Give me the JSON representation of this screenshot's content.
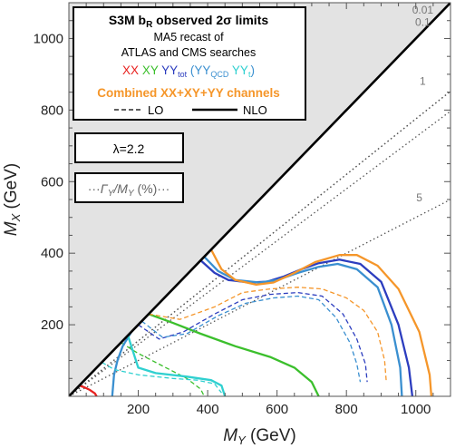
{
  "chart_data": {
    "type": "line",
    "title": "S3M b_R observed 2σ limits",
    "xlabel": "M_Y (GeV)",
    "ylabel": "M_X (GeV)",
    "xlim": [
      0,
      1100
    ],
    "ylim": [
      0,
      1100
    ],
    "x_ticks": [
      "200",
      "400",
      "600",
      "800",
      "1000"
    ],
    "y_ticks": [
      "200",
      "400",
      "600",
      "800",
      "1000"
    ],
    "grid": false,
    "legend": {
      "placement": "top-left",
      "title_main": "S3M b",
      "title_sub": "R",
      "title_rest": " observed 2σ limits",
      "line2": "MA5 recast of",
      "line3": "ATLAS and CMS searches",
      "xx": "XX",
      "xy": "XY",
      "yy_main": "YY",
      "yy_sub": "tot",
      "paren_open": "(",
      "yyqcd_main": "YY",
      "yyqcd_sub": "QCD",
      "yyt_main": "YY",
      "yyt_sub": "t",
      "paren_close": ")",
      "combined": "Combined XX+XY+YY channels",
      "lo_label": "LO",
      "nlo_label": "NLO"
    },
    "lambda_box": "λ=2.2",
    "width_box": {
      "dots_left": "···",
      "gamma": "Γ",
      "gamma_sub": "Y",
      "slash": "/M",
      "m_sub": "Y",
      "rest": " (%)",
      "dots_right": "···"
    },
    "excluded_region": "M_X < M_Y",
    "width_contours": [
      {
        "label": "0.01",
        "slope": 1.29,
        "label_at": [
          1020,
          1070
        ]
      },
      {
        "label": "0.1",
        "slope": 1.29,
        "label_at": [
          1020,
          1035
        ]
      },
      {
        "label": "1",
        "slope": 1.38,
        "label_at": [
          1020,
          870
        ]
      },
      {
        "label": "5",
        "slope": 2.0,
        "label_at": [
          1010,
          545
        ]
      }
    ],
    "series": [
      {
        "name": "XX",
        "style": "NLO",
        "points": [
          [
            30,
            30
          ],
          [
            45,
            25
          ],
          [
            60,
            18
          ],
          [
            75,
            8
          ],
          [
            80,
            0
          ]
        ]
      },
      {
        "name": "XY",
        "style": "NLO",
        "points": [
          [
            230,
            230
          ],
          [
            300,
            205
          ],
          [
            380,
            175
          ],
          [
            480,
            140
          ],
          [
            580,
            110
          ],
          [
            650,
            80
          ],
          [
            700,
            40
          ],
          [
            720,
            0
          ]
        ]
      },
      {
        "name": "XY",
        "style": "LO",
        "points": [
          [
            150,
            150
          ],
          [
            200,
            120
          ],
          [
            270,
            85
          ],
          [
            340,
            50
          ],
          [
            380,
            20
          ],
          [
            390,
            0
          ]
        ]
      },
      {
        "name": "YY_QCD",
        "style": "NLO",
        "points": [
          [
            180,
            180
          ],
          [
            155,
            140
          ],
          [
            140,
            100
          ],
          [
            130,
            60
          ],
          [
            125,
            0
          ]
        ]
      },
      {
        "name": "YY_t",
        "style": "NLO",
        "points": [
          [
            170,
            170
          ],
          [
            190,
            110
          ],
          [
            200,
            80
          ],
          [
            250,
            65
          ],
          [
            340,
            55
          ],
          [
            410,
            45
          ],
          [
            440,
            30
          ],
          [
            450,
            0
          ]
        ]
      },
      {
        "name": "YY_t",
        "style": "LO",
        "points": [
          [
            95,
            95
          ],
          [
            130,
            75
          ],
          [
            200,
            60
          ],
          [
            300,
            50
          ],
          [
            370,
            45
          ],
          [
            420,
            35
          ],
          [
            440,
            10
          ]
        ]
      },
      {
        "name": "YY_tot",
        "style": "NLO",
        "points": [
          [
            380,
            380
          ],
          [
            420,
            345
          ],
          [
            460,
            325
          ],
          [
            520,
            318
          ],
          [
            570,
            320
          ],
          [
            620,
            335
          ],
          [
            670,
            355
          ],
          [
            720,
            372
          ],
          [
            780,
            382
          ],
          [
            840,
            370
          ],
          [
            900,
            320
          ],
          [
            950,
            200
          ],
          [
            980,
            80
          ],
          [
            990,
            0
          ]
        ]
      },
      {
        "name": "YY_QCD",
        "style": "NLO",
        "points": [
          [
            390,
            390
          ],
          [
            430,
            350
          ],
          [
            480,
            325
          ],
          [
            550,
            318
          ],
          [
            600,
            325
          ],
          [
            660,
            345
          ],
          [
            720,
            362
          ],
          [
            775,
            370
          ],
          [
            830,
            355
          ],
          [
            890,
            305
          ],
          [
            930,
            200
          ],
          [
            955,
            80
          ],
          [
            960,
            0
          ]
        ]
      },
      {
        "name": "YY_tot",
        "style": "LO",
        "points": [
          [
            200,
            200
          ],
          [
            260,
            160
          ],
          [
            330,
            180
          ],
          [
            420,
            230
          ],
          [
            500,
            270
          ],
          [
            580,
            285
          ],
          [
            660,
            290
          ],
          [
            730,
            280
          ],
          [
            790,
            230
          ],
          [
            830,
            160
          ],
          [
            855,
            90
          ],
          [
            860,
            40
          ]
        ]
      },
      {
        "name": "YY_QCD",
        "style": "LO",
        "points": [
          [
            210,
            210
          ],
          [
            270,
            165
          ],
          [
            340,
            175
          ],
          [
            430,
            225
          ],
          [
            510,
            260
          ],
          [
            590,
            275
          ],
          [
            660,
            280
          ],
          [
            720,
            270
          ],
          [
            770,
            220
          ],
          [
            810,
            150
          ],
          [
            830,
            90
          ],
          [
            840,
            40
          ]
        ]
      },
      {
        "name": "Combined",
        "style": "NLO",
        "points": [
          [
            410,
            410
          ],
          [
            440,
            355
          ],
          [
            480,
            325
          ],
          [
            540,
            312
          ],
          [
            590,
            318
          ],
          [
            650,
            345
          ],
          [
            710,
            375
          ],
          [
            780,
            395
          ],
          [
            830,
            395
          ],
          [
            890,
            365
          ],
          [
            950,
            300
          ],
          [
            1010,
            180
          ],
          [
            1040,
            60
          ],
          [
            1045,
            0
          ]
        ]
      },
      {
        "name": "Combined",
        "style": "LO",
        "points": [
          [
            230,
            230
          ],
          [
            320,
            215
          ],
          [
            420,
            250
          ],
          [
            500,
            290
          ],
          [
            580,
            300
          ],
          [
            660,
            305
          ],
          [
            730,
            300
          ],
          [
            800,
            275
          ],
          [
            850,
            240
          ],
          [
            890,
            180
          ],
          [
            910,
            100
          ],
          [
            915,
            40
          ]
        ]
      }
    ],
    "colors": {
      "XX": "#e8211f",
      "XY": "#3bbf2c",
      "YY_tot": "#2c3dbf",
      "YY_QCD": "#3a8fd0",
      "YY_t": "#2fd0d0",
      "Combined": "#f5962a",
      "excluded": "#e3e3e3",
      "width_lines": "#555555"
    }
  }
}
